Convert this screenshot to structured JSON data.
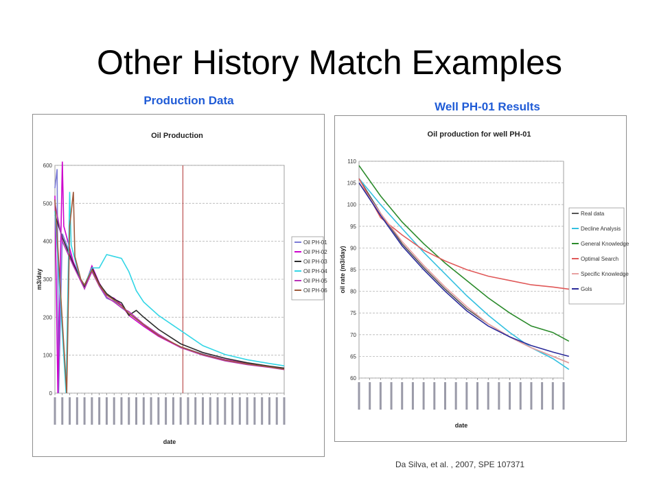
{
  "slide": {
    "title": "Other History Match Examples",
    "left_caption": "Production Data",
    "right_caption": "Well PH-01 Results",
    "citation": "Da Silva, et al. , 2007, SPE 107371"
  },
  "colors": {
    "caption": "#1f5bd6",
    "plot_bg": "#ffffff",
    "grid": "#b4b4b4"
  },
  "chart_data": [
    {
      "type": "line",
      "title": "Oil Production",
      "xlabel": "date",
      "ylabel": "m3/day",
      "x_count": 32,
      "ylim": [
        0,
        600
      ],
      "yticks": [
        0,
        100,
        200,
        300,
        400,
        500,
        600
      ],
      "grid": true,
      "legend": "right",
      "vertical_marker_x": 17.3,
      "series": [
        {
          "name": "Oil PH-01",
          "color": "#7b7bd6",
          "points": [
            [
              0,
              540
            ],
            [
              0.3,
              590
            ],
            [
              0.5,
              0
            ],
            [
              1,
              420
            ],
            [
              2.5,
              345
            ],
            [
              3.5,
              300
            ],
            [
              4,
              275
            ],
            [
              5,
              330
            ],
            [
              6,
              282
            ],
            [
              7,
              250
            ],
            [
              8,
              242
            ],
            [
              9,
              225
            ],
            [
              10,
              210
            ],
            [
              12,
              180
            ],
            [
              14,
              150
            ],
            [
              17,
              122
            ],
            [
              20,
              103
            ],
            [
              23,
              88
            ],
            [
              26,
              78
            ],
            [
              29,
              70
            ],
            [
              31,
              65
            ]
          ]
        },
        {
          "name": "Oil PH-02",
          "color": "#cc00cc",
          "points": [
            [
              0,
              520
            ],
            [
              0.4,
              0
            ],
            [
              1,
              610
            ],
            [
              1.2,
              440
            ],
            [
              2.5,
              345
            ],
            [
              3.5,
              300
            ],
            [
              4,
              280
            ],
            [
              5,
              335
            ],
            [
              6,
              290
            ],
            [
              7,
              258
            ],
            [
              8,
              250
            ],
            [
              9,
              232
            ],
            [
              10,
              205
            ],
            [
              12,
              176
            ],
            [
              14,
              150
            ],
            [
              17,
              120
            ],
            [
              20,
              102
            ],
            [
              23,
              88
            ],
            [
              26,
              78
            ],
            [
              29,
              70
            ],
            [
              31,
              64
            ]
          ]
        },
        {
          "name": "Oil PH-03",
          "color": "#2b2b2b",
          "points": [
            [
              0,
              470
            ],
            [
              1,
              410
            ],
            [
              2.5,
              340
            ],
            [
              3.5,
              300
            ],
            [
              4,
              280
            ],
            [
              5,
              330
            ],
            [
              6,
              288
            ],
            [
              7,
              262
            ],
            [
              8,
              248
            ],
            [
              9,
              238
            ],
            [
              10,
              205
            ],
            [
              11,
              218
            ],
            [
              12,
              200
            ],
            [
              14,
              168
            ],
            [
              17,
              130
            ],
            [
              20,
              107
            ],
            [
              23,
              92
            ],
            [
              26,
              80
            ],
            [
              29,
              71
            ],
            [
              31,
              66
            ]
          ]
        },
        {
          "name": "Oil PH-04",
          "color": "#33d6e6",
          "points": [
            [
              0,
              480
            ],
            [
              1.5,
              0
            ],
            [
              2,
              530
            ],
            [
              2.2,
              390
            ],
            [
              3,
              330
            ],
            [
              3.5,
              300
            ],
            [
              4,
              285
            ],
            [
              5,
              330
            ],
            [
              6,
              330
            ],
            [
              7,
              365
            ],
            [
              8,
              360
            ],
            [
              9,
              355
            ],
            [
              10,
              320
            ],
            [
              11,
              270
            ],
            [
              12,
              240
            ],
            [
              14,
              205
            ],
            [
              17,
              165
            ],
            [
              20,
              125
            ],
            [
              23,
              102
            ],
            [
              26,
              88
            ],
            [
              29,
              78
            ],
            [
              31,
              72
            ]
          ]
        },
        {
          "name": "Oil PH-05",
          "color": "#b833b8",
          "points": [
            [
              0,
              500
            ],
            [
              1,
              400
            ],
            [
              2.5,
              335
            ],
            [
              3.5,
              295
            ],
            [
              4,
              275
            ],
            [
              5,
              320
            ],
            [
              6,
              282
            ],
            [
              7,
              253
            ],
            [
              8,
              240
            ],
            [
              9,
              225
            ],
            [
              10,
              215
            ],
            [
              12,
              182
            ],
            [
              14,
              155
            ],
            [
              17,
              120
            ],
            [
              20,
              100
            ],
            [
              23,
              85
            ],
            [
              26,
              75
            ],
            [
              29,
              68
            ],
            [
              31,
              62
            ]
          ]
        },
        {
          "name": "Oil PH-06",
          "color": "#9e5a3c",
          "points": [
            [
              0,
              510
            ],
            [
              1.6,
              0
            ],
            [
              2,
              440
            ],
            [
              2.5,
              530
            ],
            [
              2.7,
              360
            ],
            [
              3.5,
              300
            ],
            [
              4,
              285
            ],
            [
              5,
              325
            ],
            [
              6,
              285
            ],
            [
              7,
              258
            ],
            [
              8,
              245
            ],
            [
              9,
              230
            ],
            [
              10,
              210
            ],
            [
              12,
              180
            ],
            [
              14,
              152
            ],
            [
              17,
              122
            ],
            [
              20,
              102
            ],
            [
              23,
              87
            ],
            [
              26,
              77
            ],
            [
              29,
              69
            ],
            [
              31,
              63
            ]
          ]
        }
      ]
    },
    {
      "type": "line",
      "title": "Oil production for well PH-01",
      "xlabel": "date",
      "ylabel": "oil rate  (m3/day)",
      "x_count": 20,
      "ylim": [
        60,
        110
      ],
      "yticks": [
        60,
        65,
        70,
        75,
        80,
        85,
        90,
        95,
        100,
        105,
        110
      ],
      "grid": true,
      "legend": "right",
      "series": [
        {
          "name": "Real data",
          "color": "#555555",
          "points": [
            [
              0,
              106
            ],
            [
              2,
              98
            ],
            [
              4,
              91
            ],
            [
              6,
              85.5
            ],
            [
              8,
              80.5
            ],
            [
              10,
              76
            ],
            [
              12,
              72.5
            ],
            [
              14,
              69.5
            ],
            [
              16,
              67
            ],
            [
              18,
              65
            ],
            [
              19.5,
              63.5
            ]
          ]
        },
        {
          "name": "Decline Analysis",
          "color": "#33c0e0",
          "points": [
            [
              0,
              106
            ],
            [
              2,
              100
            ],
            [
              4,
              94.5
            ],
            [
              6,
              89
            ],
            [
              8,
              84
            ],
            [
              10,
              79
            ],
            [
              12,
              74.5
            ],
            [
              14,
              70.5
            ],
            [
              16,
              67
            ],
            [
              18,
              64.5
            ],
            [
              19.5,
              62
            ]
          ]
        },
        {
          "name": "General Knowledge",
          "color": "#2a8a2a",
          "points": [
            [
              0,
              109
            ],
            [
              2,
              102
            ],
            [
              4,
              96
            ],
            [
              6,
              91
            ],
            [
              8,
              86.5
            ],
            [
              10,
              82.5
            ],
            [
              12,
              78.5
            ],
            [
              14,
              75
            ],
            [
              16,
              72
            ],
            [
              18,
              70.5
            ],
            [
              19.5,
              68.5
            ]
          ]
        },
        {
          "name": "Optimal Search",
          "color": "#e05858",
          "points": [
            [
              0,
              106
            ],
            [
              2,
              97
            ],
            [
              4,
              93
            ],
            [
              6,
              89.5
            ],
            [
              8,
              87
            ],
            [
              10,
              85
            ],
            [
              12,
              83.5
            ],
            [
              14,
              82.5
            ],
            [
              16,
              81.5
            ],
            [
              18,
              81
            ],
            [
              19.5,
              80.5
            ]
          ]
        },
        {
          "name": "Specific Knowledge",
          "color": "#e8a0a0",
          "points": [
            [
              0,
              105
            ],
            [
              2,
              98
            ],
            [
              4,
              91.5
            ],
            [
              6,
              86
            ],
            [
              8,
              81
            ],
            [
              10,
              76.5
            ],
            [
              12,
              72.5
            ],
            [
              14,
              69.5
            ],
            [
              16,
              67
            ],
            [
              18,
              65
            ],
            [
              19.5,
              63.5
            ]
          ]
        },
        {
          "name": "Gols",
          "color": "#2a2a9a",
          "points": [
            [
              0,
              105
            ],
            [
              2,
              97.5
            ],
            [
              4,
              90.5
            ],
            [
              6,
              85
            ],
            [
              8,
              80
            ],
            [
              10,
              75.5
            ],
            [
              12,
              72
            ],
            [
              14,
              69.5
            ],
            [
              16,
              67.5
            ],
            [
              18,
              66
            ],
            [
              19.5,
              65
            ]
          ]
        }
      ]
    }
  ]
}
